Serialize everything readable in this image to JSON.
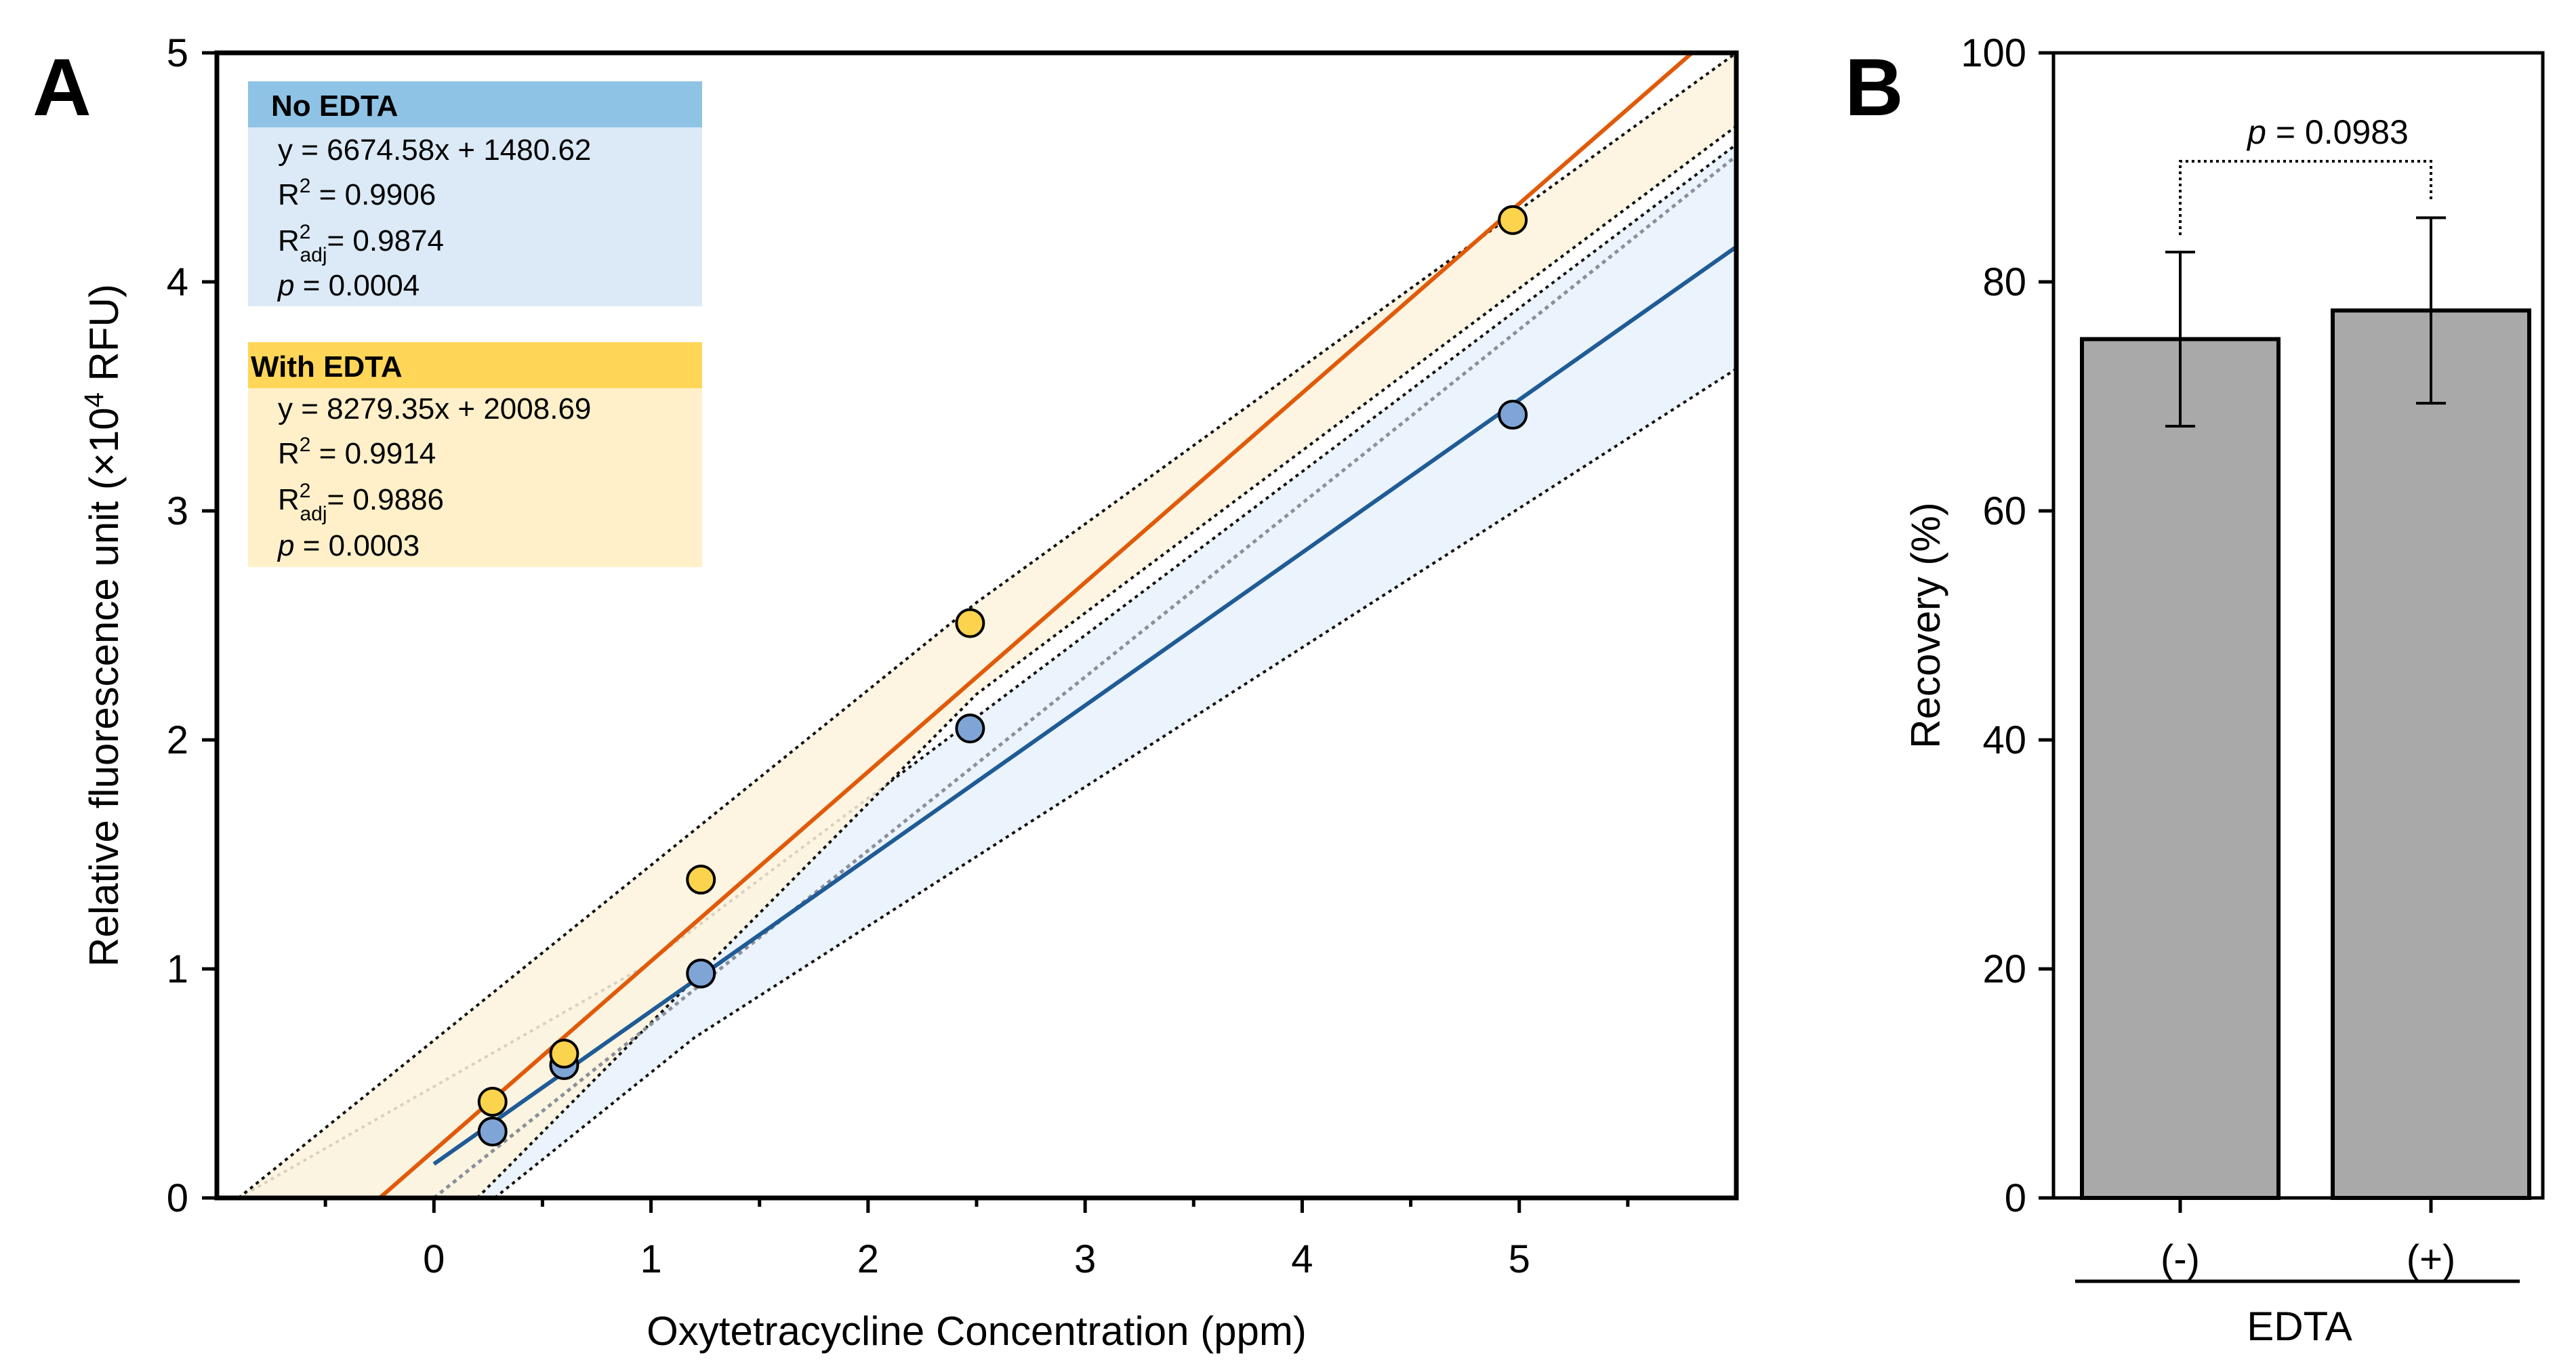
{
  "panels": {
    "a": "A",
    "b": "B"
  },
  "chart_data": [
    {
      "type": "scatter",
      "panel": "A",
      "xlabel": "Oxytetracycline Concentration (ppm)",
      "ylabel_main": "Relative fluorescence unit (",
      "ylabel_times": "×10",
      "ylabel_exp": "4",
      "ylabel_end": " RFU)",
      "xlim": [
        -1.0,
        6.0
      ],
      "ylim": [
        0,
        5
      ],
      "xticks": [
        0,
        1,
        2,
        3,
        4,
        5
      ],
      "yticks": [
        0,
        1,
        2,
        3,
        4,
        5
      ],
      "grid": false,
      "series": [
        {
          "name": "No EDTA",
          "color": "#1f5b96",
          "marker_color": "#7fa4d6",
          "band_color": "#e8f1fb",
          "x": [
            0.27,
            0.6,
            1.23,
            2.47,
            4.97
          ],
          "y": [
            0.29,
            0.58,
            0.98,
            2.05,
            3.42
          ],
          "fit": {
            "slope": 6674.58,
            "intercept": 1480.62
          },
          "fit_x_start": 0.0,
          "band": {
            "upper": [
              [
                -0.9,
                0.0
              ],
              [
                0.95,
                1.0
              ],
              [
                2.5,
                2.1
              ],
              [
                6.0,
                4.6
              ]
            ],
            "lower": [
              [
                0.28,
                0.0
              ],
              [
                1.2,
                0.7
              ],
              [
                6.0,
                3.62
              ]
            ]
          }
        },
        {
          "name": "With EDTA",
          "color": "#e05a0a",
          "marker_color": "#fcd34d",
          "band_color": "#fdf3dc",
          "x": [
            0.27,
            0.6,
            1.23,
            2.47,
            4.97
          ],
          "y": [
            0.42,
            0.63,
            1.39,
            2.51,
            4.27
          ],
          "fit": {
            "slope": 8279.35,
            "intercept": 2008.69
          },
          "fit_x_start": -0.25,
          "band": {
            "upper": [
              [
                -0.9,
                0.0
              ],
              [
                2.5,
                2.6
              ],
              [
                6.0,
                5.0
              ]
            ],
            "lower": [
              [
                0.2,
                0.0
              ],
              [
                2.5,
                2.2
              ],
              [
                6.0,
                4.68
              ]
            ]
          }
        }
      ],
      "legend": {
        "no_edta": {
          "title": "No EDTA",
          "header_color": "#8fc3e6",
          "body_color": "#dbeaf6",
          "eq": "y = 6674.58x + 1480.62",
          "r2_label": "R",
          "r2_exp": "2",
          "r2_value": " = 0.9906",
          "r2adj_label": "R",
          "r2adj_exp": "2",
          "r2adj_sub": "adj",
          "r2adj_value": "= 0.9874",
          "p_label": "p",
          "p_value": " = 0.0004"
        },
        "with_edta": {
          "title": "With EDTA",
          "header_color": "#ffd658",
          "body_color": "#fff0c9",
          "eq": "y = 8279.35x + 2008.69",
          "r2_label": "R",
          "r2_exp": "2",
          "r2_value": " = 0.9914",
          "r2adj_label": "R",
          "r2adj_exp": "2",
          "r2adj_sub": "adj",
          "r2adj_value": "= 0.9886",
          "p_label": "p",
          "p_value": " = 0.0003"
        }
      }
    },
    {
      "type": "bar",
      "panel": "B",
      "categories": [
        "(-)",
        "(+)"
      ],
      "values": [
        75.0,
        77.5
      ],
      "errors": [
        7.6,
        8.1
      ],
      "xlabel": "EDTA",
      "ylabel": "Recovery (%)",
      "ylim": [
        0,
        100
      ],
      "yticks": [
        0,
        20,
        40,
        60,
        80,
        100
      ],
      "bar_color": "#a9a9a9",
      "significance": {
        "label": "p",
        "value": " = 0.0983"
      }
    }
  ]
}
